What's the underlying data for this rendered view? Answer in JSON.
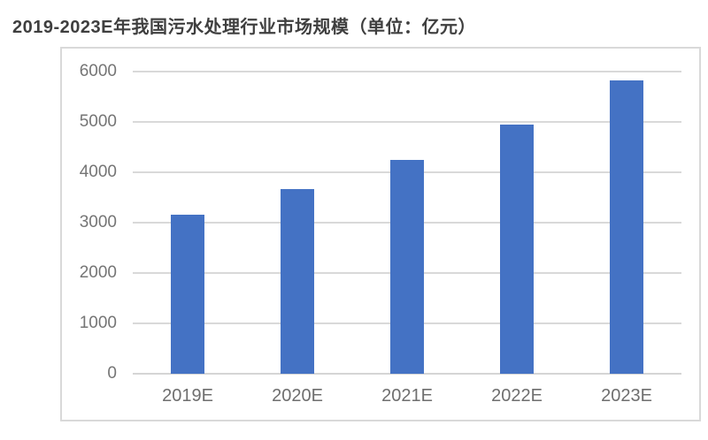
{
  "page": {
    "title": "2019-2023E年我国污水处理行业市场规模（单位：亿元）"
  },
  "chart_data": {
    "type": "bar",
    "title": "2019-2023E年我国污水处理行业市场规模（单位：亿元）",
    "unit": "亿元",
    "categories": [
      "2019E",
      "2020E",
      "2021E",
      "2022E",
      "2023E"
    ],
    "values": [
      3150,
      3660,
      4250,
      4950,
      5820
    ],
    "xlabel": "",
    "ylabel": "",
    "ylim": [
      0,
      6000
    ],
    "yticks": [
      0,
      1000,
      2000,
      3000,
      4000,
      5000,
      6000
    ],
    "grid": true,
    "legend": false,
    "bar_color": "#4472c4",
    "gridline_color": "#d9d9d9",
    "frame_border_color": "#d9d9d9",
    "title_color": "#3f3f3f",
    "axis_label_color": "#6e6e6e"
  }
}
